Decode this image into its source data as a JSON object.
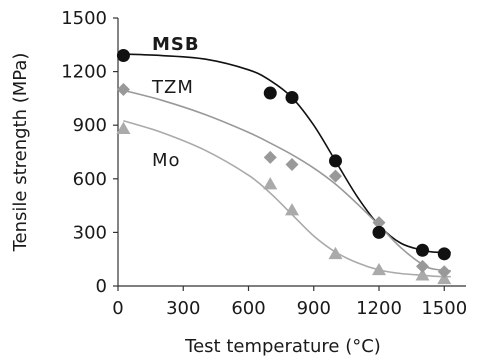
{
  "chart_data": {
    "type": "scatter",
    "xlabel": "Test temperature (°C)",
    "ylabel": "Tensile strength (MPa)",
    "xlim": [
      0,
      1600
    ],
    "ylim": [
      0,
      1500
    ],
    "xticks": [
      0,
      300,
      600,
      900,
      1200,
      1500
    ],
    "yticks": [
      0,
      300,
      600,
      900,
      1200,
      1500
    ],
    "grid": false,
    "legend": "none",
    "series": [
      {
        "name": "MSB",
        "marker": "circle",
        "marker_color": "#111111",
        "line_color": "#111111",
        "label_bold": true,
        "x": [
          25,
          700,
          800,
          1000,
          1200,
          1400,
          1500
        ],
        "y": [
          1290,
          1080,
          1055,
          700,
          300,
          200,
          180
        ],
        "fit_x": [
          25,
          200,
          400,
          600,
          700,
          800,
          900,
          1000,
          1100,
          1200,
          1300,
          1400,
          1450,
          1530
        ],
        "fit_y": [
          1298,
          1290,
          1270,
          1210,
          1150,
          1055,
          900,
          700,
          500,
          340,
          240,
          200,
          190,
          188
        ]
      },
      {
        "name": "TZM",
        "marker": "diamond",
        "marker_color": "#999999",
        "line_color": "#999999",
        "label_bold": false,
        "x": [
          25,
          700,
          800,
          1000,
          1200,
          1400,
          1500
        ],
        "y": [
          1100,
          720,
          680,
          615,
          355,
          110,
          80
        ],
        "fit_x": [
          25,
          200,
          400,
          600,
          700,
          800,
          900,
          1000,
          1100,
          1200,
          1300,
          1400,
          1450,
          1530
        ],
        "fit_y": [
          1095,
          1040,
          960,
          860,
          800,
          735,
          660,
          570,
          460,
          340,
          215,
          120,
          95,
          85
        ]
      },
      {
        "name": "Mo",
        "marker": "triangle",
        "marker_color": "#aaaaaa",
        "line_color": "#aaaaaa",
        "label_bold": false,
        "x": [
          25,
          700,
          800,
          1000,
          1200,
          1400,
          1500
        ],
        "y": [
          880,
          570,
          425,
          180,
          90,
          60,
          40
        ],
        "fit_x": [
          25,
          200,
          400,
          600,
          700,
          800,
          900,
          1000,
          1100,
          1200,
          1300,
          1400,
          1450,
          1530
        ],
        "fit_y": [
          925,
          860,
          760,
          620,
          520,
          400,
          280,
          190,
          130,
          90,
          70,
          60,
          55,
          52
        ]
      }
    ]
  }
}
